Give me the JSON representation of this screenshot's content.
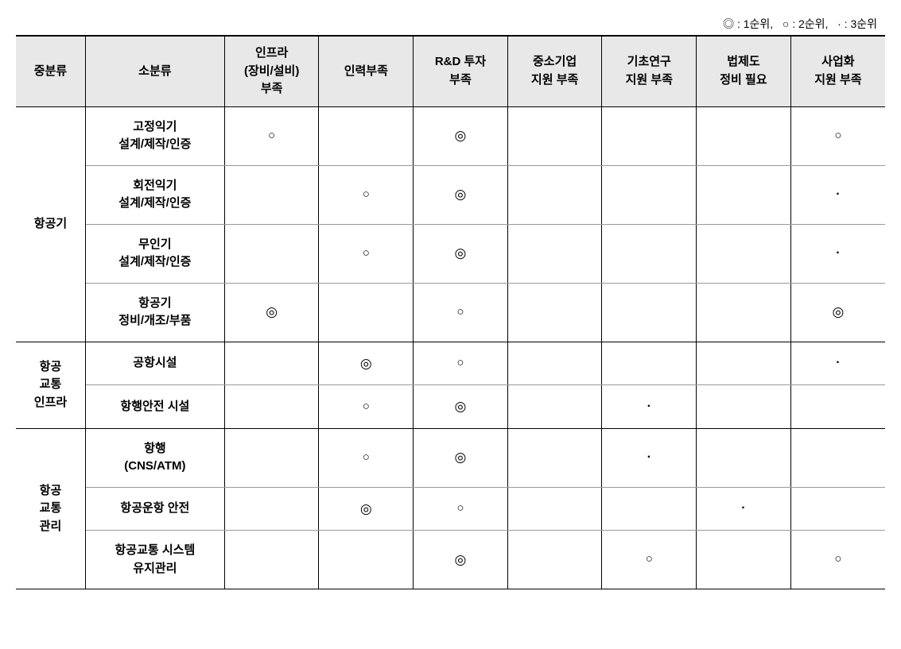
{
  "legend": {
    "rank1": {
      "symbol": "◎",
      "label": "1순위"
    },
    "rank2": {
      "symbol": "○",
      "label": "2순위"
    },
    "rank3": {
      "symbol": "·",
      "label": "3순위"
    }
  },
  "columns": {
    "cat": "중분류",
    "sub": "소분류",
    "c1": "인프라\n(장비/설비)\n부족",
    "c2": "인력부족",
    "c3": "R&D 투자\n부족",
    "c4": "중소기업\n지원 부족",
    "c5": "기초연구\n지원 부족",
    "c6": "법제도\n정비 필요",
    "c7": "사업화\n지원 부족"
  },
  "symbolMap": {
    "1": "◎",
    "2": "○",
    "3": "·"
  },
  "groups": [
    {
      "category": "항공기",
      "rows": [
        {
          "sub": "고정익기\n설계/제작/인증",
          "cells": [
            "2",
            "",
            "1",
            "",
            "",
            "",
            "2"
          ]
        },
        {
          "sub": "회전익기\n설계/제작/인증",
          "cells": [
            "",
            "2",
            "1",
            "",
            "",
            "",
            "3"
          ]
        },
        {
          "sub": "무인기\n설계/제작/인증",
          "cells": [
            "",
            "2",
            "1",
            "",
            "",
            "",
            "3"
          ]
        },
        {
          "sub": "항공기\n정비/개조/부품",
          "cells": [
            "1",
            "",
            "2",
            "",
            "",
            "",
            "1"
          ]
        }
      ]
    },
    {
      "category": "항공\n교통\n인프라",
      "rows": [
        {
          "sub": "공항시설",
          "cells": [
            "",
            "1",
            "2",
            "",
            "",
            "",
            "3"
          ]
        },
        {
          "sub": "항행안전 시설",
          "cells": [
            "",
            "2",
            "1",
            "",
            "3",
            "",
            ""
          ]
        }
      ]
    },
    {
      "category": "항공\n교통\n관리",
      "rows": [
        {
          "sub": "항행\n(CNS/ATM)",
          "cells": [
            "",
            "2",
            "1",
            "",
            "3",
            "",
            ""
          ]
        },
        {
          "sub": "항공운항 안전",
          "cells": [
            "",
            "1",
            "2",
            "",
            "",
            "3",
            ""
          ]
        },
        {
          "sub": "항공교통 시스템\n유지관리",
          "cells": [
            "",
            "",
            "1",
            "",
            "2",
            "",
            "2"
          ]
        }
      ]
    }
  ],
  "styling": {
    "background_color": "#ffffff",
    "header_bg": "#e8e8e8",
    "border_color_strong": "#000000",
    "border_color_light": "#999999",
    "font_family": "Malgun Gothic",
    "header_fontsize": 15,
    "cell_fontsize": 15,
    "legend_fontsize": 14
  }
}
